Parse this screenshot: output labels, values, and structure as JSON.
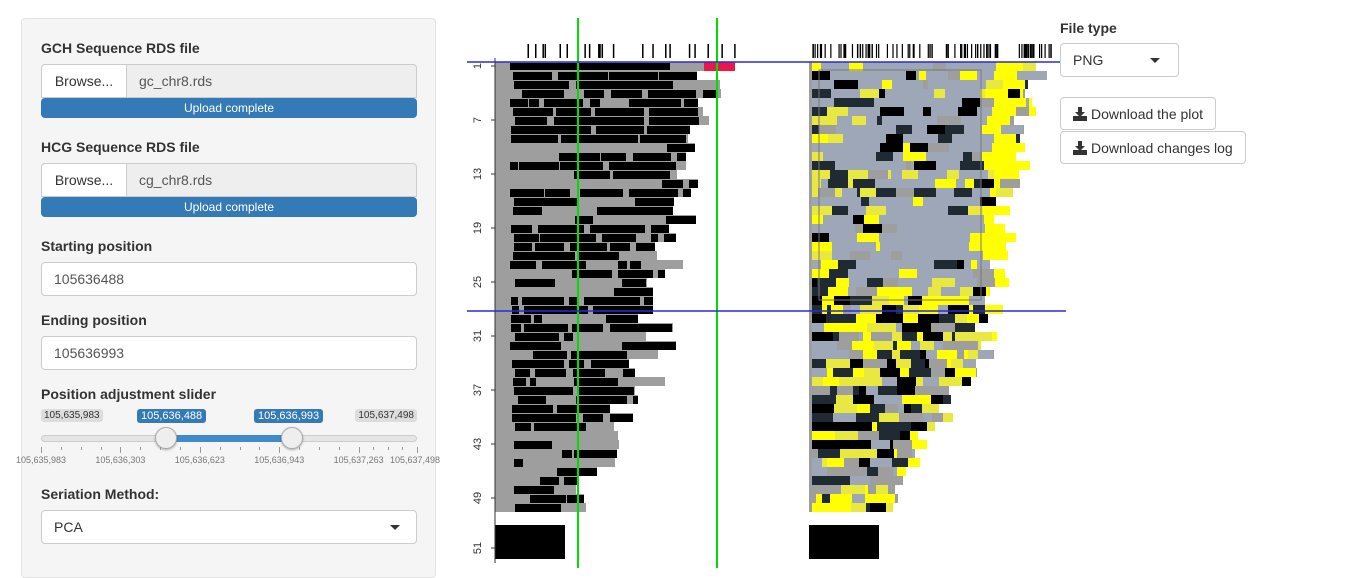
{
  "sidebar": {
    "gch": {
      "label": "GCH Sequence RDS file",
      "browse_label": "Browse...",
      "file_name": "gc_chr8.rds",
      "progress_text": "Upload complete"
    },
    "hcg": {
      "label": "HCG Sequence RDS file",
      "browse_label": "Browse...",
      "file_name": "cg_chr8.rds",
      "progress_text": "Upload complete"
    },
    "start": {
      "label": "Starting position",
      "value": "105636488"
    },
    "end": {
      "label": "Ending position",
      "value": "105636993"
    },
    "slider": {
      "label": "Position adjustment slider",
      "min_label": "105,635,983",
      "max_label": "105,637,498",
      "from_label": "105,636,488",
      "to_label": "105,636,993",
      "min": 105635983,
      "max": 105637498,
      "from": 105636488,
      "to": 105636993,
      "ticks": [
        "105,635,983",
        "105,636,303",
        "105,636,623",
        "105,636,943",
        "105,637,263",
        "105,637,498"
      ]
    },
    "seriation": {
      "label": "Seriation Method:",
      "value": "PCA"
    }
  },
  "plot": {
    "y_ticks": [
      "1",
      "7",
      "13",
      "19",
      "25",
      "31",
      "37",
      "43",
      "49",
      "51"
    ],
    "colors": {
      "methylated": "#000000",
      "gray": "#9e9e9e",
      "light_blue": "#9da7b8",
      "dark_slate": "#1f2a33",
      "yellow": "#ffff00",
      "pale_yellow": "#e8e840",
      "green_line": "#00dd00",
      "blue_line": "#2a2ad8",
      "red": "#e8194a"
    }
  },
  "controls": {
    "file_type_label": "File type",
    "file_type_value": "PNG",
    "download_plot_label": "Download the plot",
    "download_log_label": "Download changes log"
  }
}
